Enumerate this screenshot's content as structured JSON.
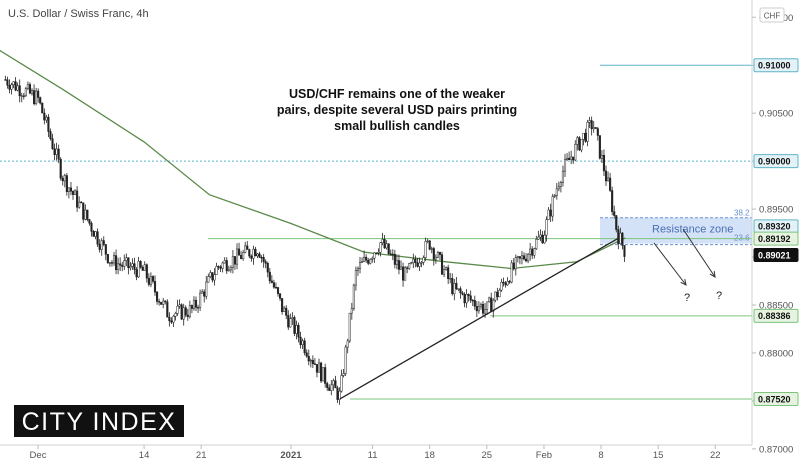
{
  "chart_data": {
    "type": "candlestick",
    "title": "U.S. Dollar / Swiss Franc, 4h",
    "currency": "CHF",
    "annotation": [
      "USD/CHF remains one of the weaker",
      "pairs, despite several USD pairs printing",
      "small bullish candles"
    ],
    "x_ticks": [
      "Dec",
      "14",
      "21",
      "2021",
      "11",
      "18",
      "25",
      "Feb",
      "8",
      "15",
      "22"
    ],
    "y_ticks": [
      "0.91500",
      "0.91000",
      "0.90500",
      "0.90000",
      "0.89500",
      "0.89000",
      "0.88500",
      "0.88000",
      "0.87500",
      "0.87000"
    ],
    "ylim": [
      0.8704,
      0.9168
    ],
    "levels": [
      {
        "label": "0.91000",
        "value": 0.91,
        "style": "solid",
        "color": "#5fb5c9"
      },
      {
        "label": "0.90000",
        "value": 0.9,
        "style": "dotted",
        "color": "#5fb5c9"
      },
      {
        "label": "0.89320",
        "value": 0.8932,
        "style": "none",
        "color": "#5fb5c9"
      },
      {
        "label": "0.89192",
        "value": 0.89192,
        "style": "solid",
        "color": "#7cc47c"
      },
      {
        "label": "0.89021",
        "value": 0.89021,
        "style": "none",
        "color": "#111111"
      },
      {
        "label": "0.88386",
        "value": 0.88386,
        "style": "solid",
        "color": "#7cc47c"
      },
      {
        "label": "0.87520",
        "value": 0.8752,
        "style": "solid",
        "color": "#7cc47c"
      }
    ],
    "resistance_zone": {
      "label": "Resistance zone",
      "low": 0.8914,
      "high": 0.8941
    },
    "fib_labels": [
      "38.2",
      "23.6"
    ],
    "trendline": {
      "from": {
        "date": "Jan 7",
        "value": 0.8752
      },
      "to": {
        "date": "Feb 10",
        "value": 0.8919
      }
    },
    "projection_marks": [
      "?",
      "?"
    ],
    "moving_average": {
      "name": "",
      "color": "#5a8a4a"
    },
    "price_path": [
      {
        "date": "Nov 27",
        "close": 0.9085
      },
      {
        "date": "Dec 1",
        "close": 0.9065
      },
      {
        "date": "Dec 4",
        "close": 0.8985
      },
      {
        "date": "Dec 7",
        "close": 0.894
      },
      {
        "date": "Dec 10",
        "close": 0.8895
      },
      {
        "date": "Dec 14",
        "close": 0.8885
      },
      {
        "date": "Dec 17",
        "close": 0.884
      },
      {
        "date": "Dec 20",
        "close": 0.8845
      },
      {
        "date": "Dec 23",
        "close": 0.889
      },
      {
        "date": "Dec 28",
        "close": 0.891
      },
      {
        "date": "Dec 31",
        "close": 0.8845
      },
      {
        "date": "Jan 5",
        "close": 0.8775
      },
      {
        "date": "Jan 7",
        "close": 0.8755
      },
      {
        "date": "Jan 9",
        "close": 0.8885
      },
      {
        "date": "Jan 12",
        "close": 0.8915
      },
      {
        "date": "Jan 15",
        "close": 0.888
      },
      {
        "date": "Jan 18",
        "close": 0.8915
      },
      {
        "date": "Jan 21",
        "close": 0.8865
      },
      {
        "date": "Jan 25",
        "close": 0.8845
      },
      {
        "date": "Jan 28",
        "close": 0.8885
      },
      {
        "date": "Feb 1",
        "close": 0.8925
      },
      {
        "date": "Feb 3",
        "close": 0.8985
      },
      {
        "date": "Feb 5",
        "close": 0.9015
      },
      {
        "date": "Feb 7",
        "close": 0.904
      },
      {
        "date": "Feb 9",
        "close": 0.897
      },
      {
        "date": "Feb 10",
        "close": 0.8925
      },
      {
        "date": "Feb 11",
        "close": 0.8905
      }
    ],
    "ma_path": [
      {
        "date": "Nov 26",
        "value": 0.9117
      },
      {
        "date": "Dec 4",
        "value": 0.9075
      },
      {
        "date": "Dec 14",
        "value": 0.902
      },
      {
        "date": "Dec 22",
        "value": 0.8965
      },
      {
        "date": "Jan 1",
        "value": 0.8935
      },
      {
        "date": "Jan 10",
        "value": 0.8905
      },
      {
        "date": "Jan 20",
        "value": 0.8895
      },
      {
        "date": "Jan 28",
        "value": 0.8888
      },
      {
        "date": "Feb 5",
        "value": 0.8895
      },
      {
        "date": "Feb 11",
        "value": 0.892
      }
    ]
  },
  "logo": {
    "text": "CITY INDEX"
  }
}
